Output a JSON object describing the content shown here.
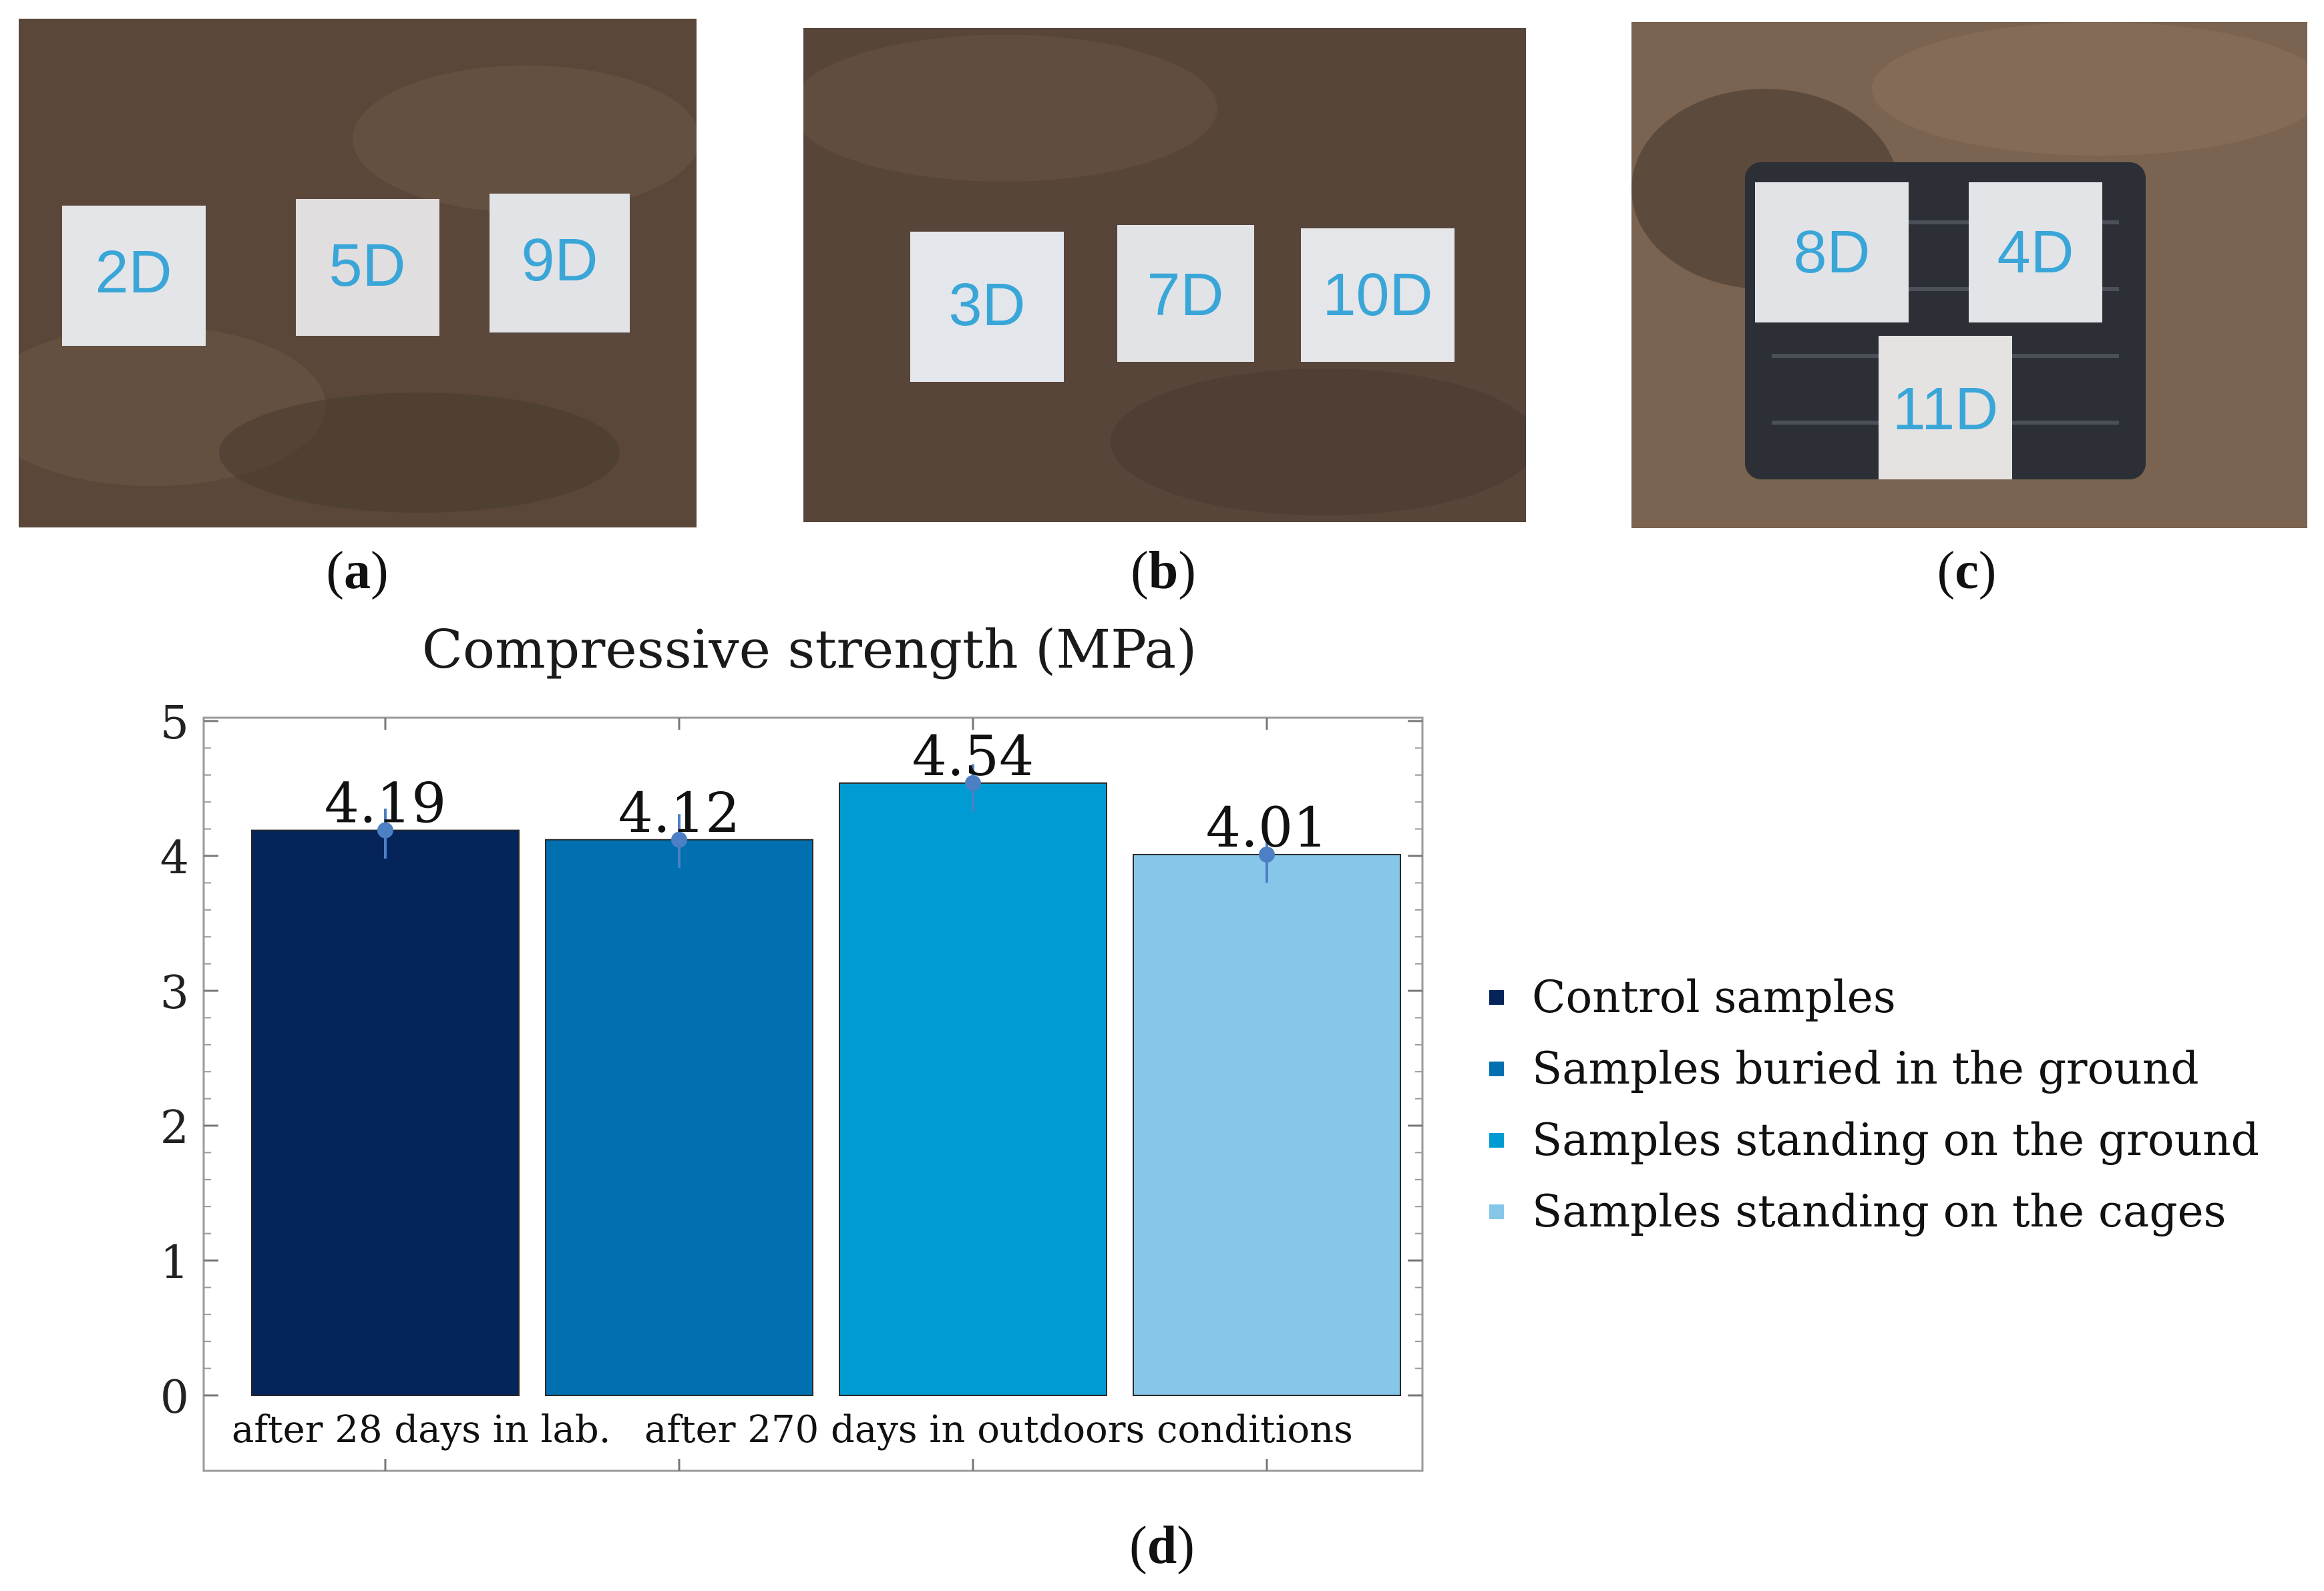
{
  "panels": {
    "a": {
      "letter": "a",
      "markers": [
        "2D",
        "5D",
        "9D"
      ]
    },
    "b": {
      "letter": "b",
      "markers": [
        "3D",
        "7D",
        "10D"
      ]
    },
    "c": {
      "letter": "c",
      "markers": [
        "8D",
        "4D",
        "11D"
      ]
    },
    "d": {
      "letter": "d"
    }
  },
  "colors": {
    "soil": "#5c4a3c",
    "block": "#e6e7ea",
    "marker_ink": "#3aa6d8",
    "cage": "#2c3036"
  },
  "chart_data": {
    "type": "bar",
    "title": "Compressive strength (MPa)",
    "ylim": [
      0,
      5
    ],
    "yticks": [
      "0",
      "1",
      "2",
      "3",
      "4",
      "5"
    ],
    "grid": false,
    "legend_placement": "right",
    "categories": [
      "Control samples",
      "Samples buried in the ground",
      "Samples standing on the ground",
      "Samples standing on the cages"
    ],
    "values": [
      4.19,
      4.12,
      4.54,
      4.01
    ],
    "value_labels": [
      "4.19",
      "4.12",
      "4.54",
      "4.01"
    ],
    "error_low": [
      3.98,
      3.91,
      4.33,
      3.8
    ],
    "error_high": [
      4.35,
      4.31,
      4.68,
      4.14
    ],
    "colors": [
      "#04245a",
      "#0070b0",
      "#009bd2",
      "#86c6e9"
    ],
    "group_labels": [
      "after 28 days in lab.",
      "after 270 days in outdoors conditions"
    ]
  }
}
